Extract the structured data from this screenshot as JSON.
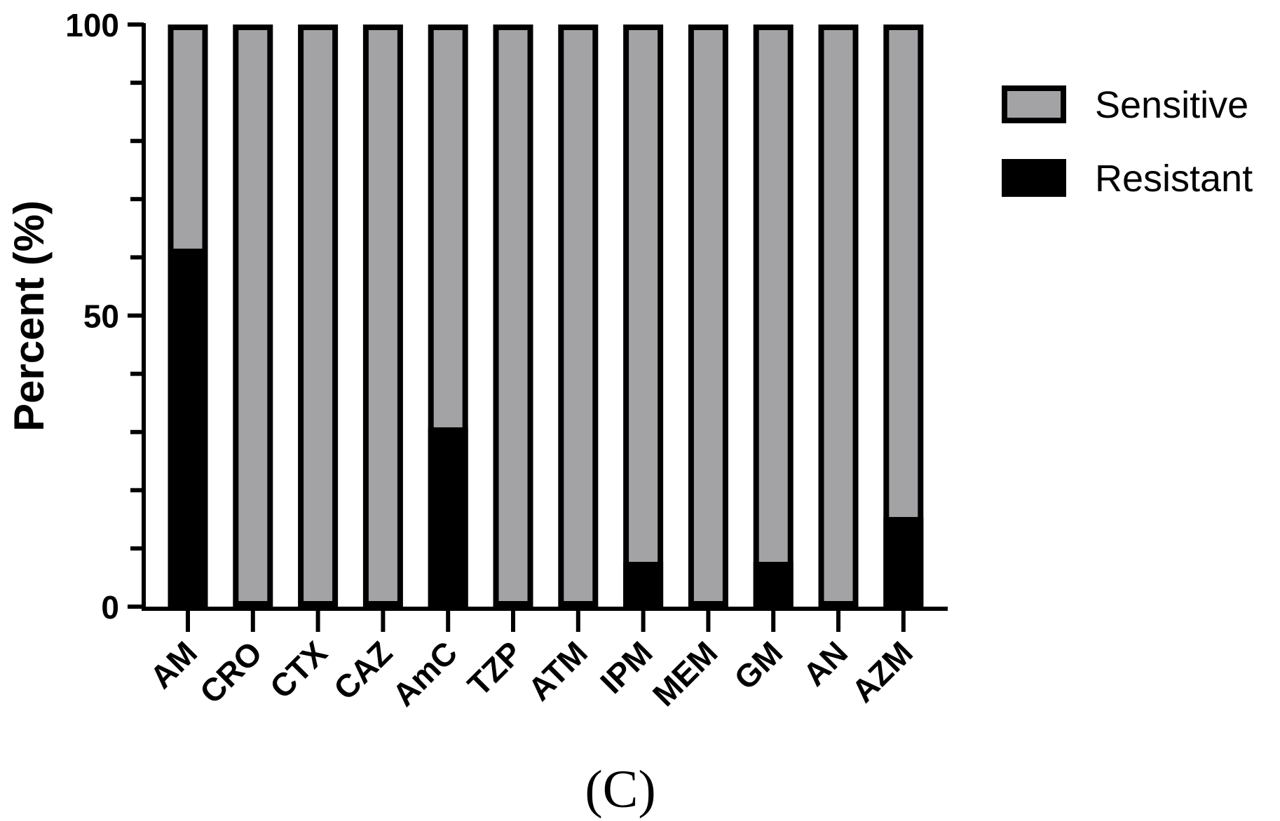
{
  "chart_data": {
    "type": "bar",
    "stacked": true,
    "title": "",
    "xlabel": "",
    "ylabel": "Percent (%)",
    "ylim": [
      0,
      100
    ],
    "y_ticks": [
      "0",
      "50",
      "100"
    ],
    "categories": [
      "AM",
      "CRO",
      "CTX",
      "CAZ",
      "AmC",
      "TZP",
      "ATM",
      "IPM",
      "MEM",
      "GM",
      "AN",
      "AZM"
    ],
    "series": [
      {
        "name": "Resistant",
        "color": "#000000",
        "values": [
          61.5,
          0,
          0,
          0,
          30.8,
          0,
          0,
          7.7,
          0,
          7.7,
          0,
          15.4
        ]
      },
      {
        "name": "Sensitive",
        "color": "#a3a3a6",
        "values": [
          38.5,
          100,
          100,
          100,
          69.2,
          100,
          100,
          92.3,
          100,
          92.3,
          100,
          84.6
        ]
      }
    ],
    "legend_position": "top-right",
    "legend_order": [
      "Sensitive",
      "Resistant"
    ],
    "grid": false
  },
  "panel_label": "(C)"
}
